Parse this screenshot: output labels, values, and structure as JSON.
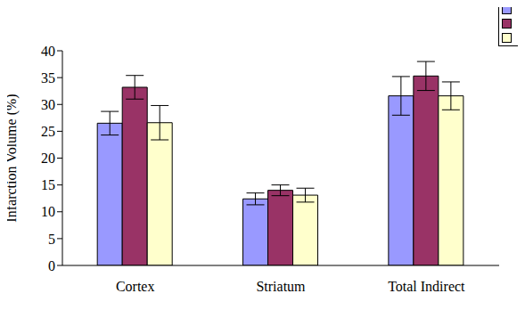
{
  "chart_data": {
    "type": "bar",
    "y_label": "Infarction Volume (%)",
    "categories": [
      "Cortex",
      "Striatum",
      "Total Indirect"
    ],
    "series": [
      {
        "color": "#9999ff",
        "values": [
          26.5,
          12.4,
          31.6
        ],
        "errors": [
          2.2,
          1.1,
          3.6
        ]
      },
      {
        "color": "#993366",
        "values": [
          33.2,
          14.0,
          35.3
        ],
        "errors": [
          2.2,
          1.0,
          2.7
        ]
      },
      {
        "color": "#ffffcc",
        "values": [
          26.6,
          13.1,
          31.6
        ],
        "errors": [
          3.2,
          1.3,
          2.6
        ]
      }
    ],
    "ylim": [
      0,
      40
    ],
    "yticks": [
      0,
      5,
      10,
      15,
      20,
      25,
      30,
      35,
      40
    ],
    "grid": false
  }
}
